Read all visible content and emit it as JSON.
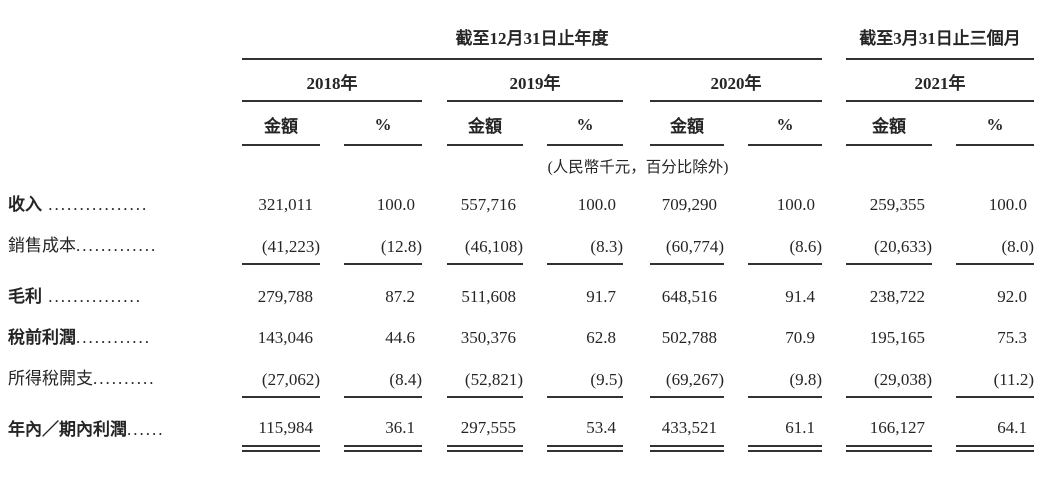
{
  "header": {
    "period_annual": "截至12月31日止年度",
    "period_quarter": "截至3月31日止三個月",
    "years": [
      "2018年",
      "2019年",
      "2020年",
      "2021年"
    ],
    "amount_label": "金額",
    "percent_label": "%",
    "unit_note": "(人民幣千元，百分比除外)"
  },
  "rows": [
    {
      "label": "收入",
      "leader": " ................",
      "values": [
        "321,011",
        "100.0",
        "557,716",
        "100.0",
        "709,290",
        "100.0",
        "259,355",
        "100.0"
      ]
    },
    {
      "label": "銷售成本",
      "leader": ".............",
      "values": [
        "(41,223)",
        "(12.8)",
        "(46,108)",
        "(8.3)",
        "(60,774)",
        "(8.6)",
        "(20,633)",
        "(8.0)"
      ]
    },
    {
      "label": "毛利",
      "leader": " ...............",
      "values": [
        "279,788",
        "87.2",
        "511,608",
        "91.7",
        "648,516",
        "91.4",
        "238,722",
        "92.0"
      ]
    },
    {
      "label": "稅前利潤",
      "leader": "............",
      "values": [
        "143,046",
        "44.6",
        "350,376",
        "62.8",
        "502,788",
        "70.9",
        "195,165",
        "75.3"
      ]
    },
    {
      "label": "所得稅開支",
      "leader": "..........",
      "values": [
        "(27,062)",
        "(8.4)",
        "(52,821)",
        "(9.5)",
        "(69,267)",
        "(9.8)",
        "(29,038)",
        "(11.2)"
      ]
    },
    {
      "label": "年內／期內利潤",
      "leader": "......",
      "values": [
        "115,984",
        "36.1",
        "297,555",
        "53.4",
        "433,521",
        "61.1",
        "166,127",
        "64.1"
      ]
    }
  ]
}
